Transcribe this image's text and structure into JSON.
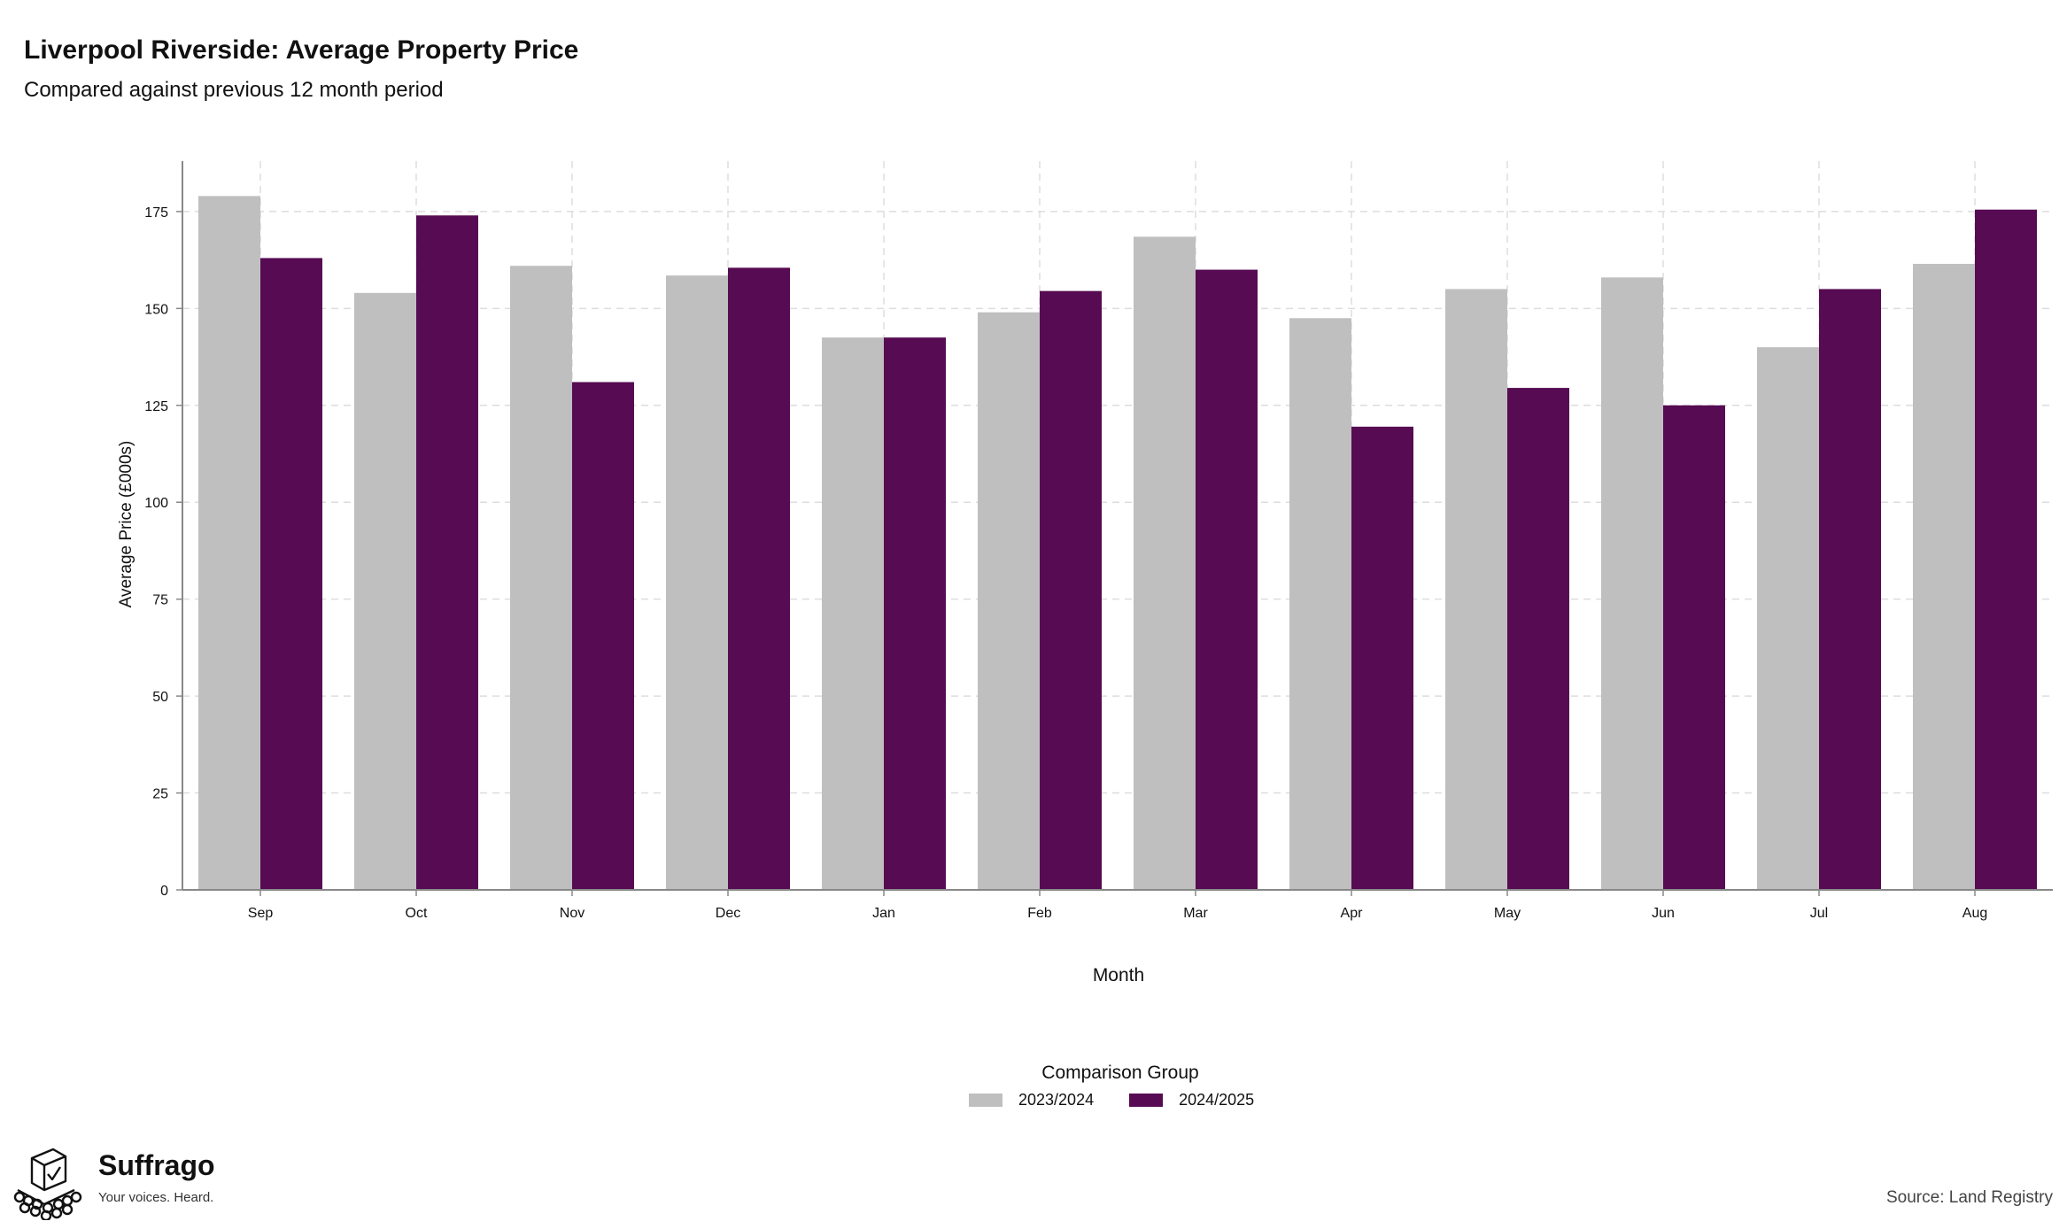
{
  "header": {
    "title": "Liverpool Riverside: Average Property Price",
    "subtitle": "Compared against previous 12 month period"
  },
  "legend": {
    "title": "Comparison Group",
    "items": [
      "2023/2024",
      "2024/2025"
    ]
  },
  "brand": {
    "name": "Suffrago",
    "tagline": "Your voices. Heard."
  },
  "footer": {
    "source": "Source: Land Registry"
  },
  "colors": {
    "series_2023_2024": "#bfbfbf",
    "series_2024_2025": "#560b52",
    "grid": "#dddddd",
    "axis": "#888888"
  },
  "chart_data": {
    "type": "bar",
    "xlabel": "Month",
    "ylabel": "Average Price (£000s)",
    "ylim": [
      0,
      188
    ],
    "yticks": [
      0,
      25,
      50,
      75,
      100,
      125,
      150,
      175
    ],
    "grid": true,
    "legend_position": "bottom-center",
    "categories": [
      "Sep",
      "Oct",
      "Nov",
      "Dec",
      "Jan",
      "Feb",
      "Mar",
      "Apr",
      "May",
      "Jun",
      "Jul",
      "Aug"
    ],
    "series": [
      {
        "name": "2023/2024",
        "values": [
          179,
          154,
          161,
          158.5,
          142.5,
          149,
          168.5,
          147.5,
          155,
          158,
          140,
          161.5
        ]
      },
      {
        "name": "2024/2025",
        "values": [
          163,
          174,
          131,
          160.5,
          142.5,
          154.5,
          160,
          119.5,
          129.5,
          125,
          155,
          175.5
        ]
      }
    ]
  }
}
